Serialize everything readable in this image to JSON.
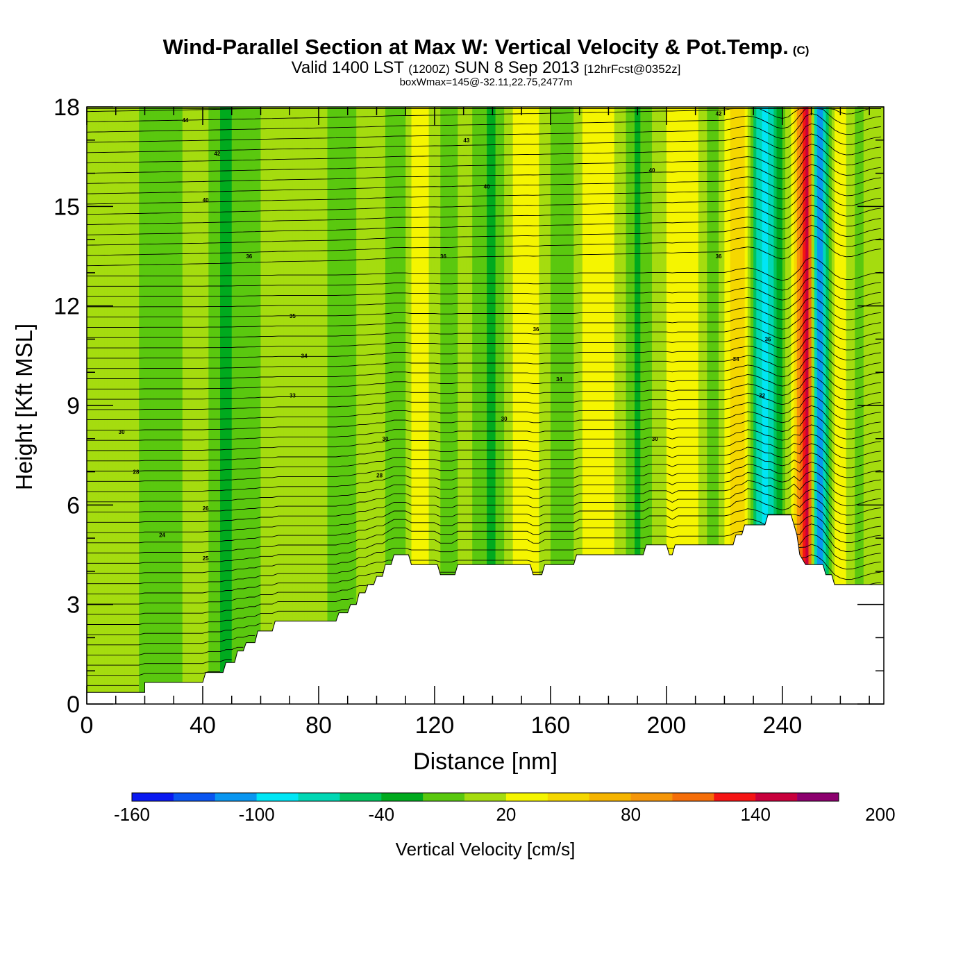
{
  "title": "Wind-Parallel Section at Max W: Vertical Velocity & Pot.Temp.",
  "title_mark": "(C)",
  "subtitle": {
    "valid": "Valid 1400 LST",
    "utc": "(1200Z)",
    "date": "SUN 8 Sep 2013",
    "forecast": "[12hrFcst@0352z]"
  },
  "info": "boxWmax=145@-32.11,22.75,2477m",
  "chart_data": {
    "type": "heatmap",
    "xlabel": "Distance [nm]",
    "ylabel": "Height [Kft MSL]",
    "xlim": [
      0,
      275
    ],
    "ylim": [
      0,
      18
    ],
    "x_ticks": [
      0,
      40,
      80,
      120,
      160,
      200,
      240
    ],
    "x_tick_labels": [
      "0",
      "40",
      "80",
      "120",
      "160",
      "200",
      "240"
    ],
    "y_ticks": [
      0,
      3,
      6,
      9,
      12,
      15,
      18
    ],
    "y_tick_labels": [
      "0",
      "3",
      "6",
      "9",
      "12",
      "15",
      "18"
    ],
    "colorbar": {
      "label": "Vertical Velocity [cm/s]",
      "levels": [
        -160,
        -140,
        -120,
        -100,
        -80,
        -60,
        -40,
        -20,
        0,
        20,
        40,
        60,
        80,
        100,
        120,
        140,
        160,
        180,
        200
      ],
      "tick_labels": [
        "-160",
        "-100",
        "-40",
        "20",
        "80",
        "140",
        "200"
      ],
      "colors": [
        "#0a19f0",
        "#0a55f0",
        "#0a96f0",
        "#00e6f5",
        "#00d7b4",
        "#00c35f",
        "#00aa1e",
        "#5ac80f",
        "#a5dc0f",
        "#f5f500",
        "#f5d700",
        "#f5b400",
        "#f5960a",
        "#f56e0a",
        "#f51414",
        "#c8003c",
        "#8c006e"
      ]
    },
    "terrain_kft": [
      [
        0,
        0.35
      ],
      [
        20,
        0.35
      ],
      [
        20,
        0.65
      ],
      [
        40,
        0.65
      ],
      [
        41,
        0.95
      ],
      [
        47,
        0.95
      ],
      [
        48,
        1.25
      ],
      [
        51,
        1.25
      ],
      [
        52,
        1.6
      ],
      [
        54,
        1.6
      ],
      [
        55,
        1.85
      ],
      [
        58,
        1.85
      ],
      [
        59,
        2.2
      ],
      [
        64,
        2.2
      ],
      [
        65,
        2.5
      ],
      [
        86,
        2.5
      ],
      [
        87,
        2.75
      ],
      [
        90,
        2.75
      ],
      [
        91,
        3.0
      ],
      [
        93,
        3.0
      ],
      [
        94,
        3.35
      ],
      [
        96,
        3.35
      ],
      [
        97,
        3.6
      ],
      [
        99,
        3.6
      ],
      [
        100,
        3.85
      ],
      [
        102,
        3.85
      ],
      [
        103,
        4.2
      ],
      [
        105,
        4.2
      ],
      [
        106,
        4.5
      ],
      [
        111,
        4.5
      ],
      [
        112,
        4.2
      ],
      [
        121,
        4.2
      ],
      [
        122,
        3.9
      ],
      [
        127,
        3.9
      ],
      [
        128,
        4.2
      ],
      [
        153,
        4.2
      ],
      [
        154,
        3.9
      ],
      [
        157,
        3.9
      ],
      [
        158,
        4.2
      ],
      [
        168,
        4.2
      ],
      [
        169,
        4.5
      ],
      [
        192,
        4.5
      ],
      [
        193,
        4.8
      ],
      [
        200,
        4.8
      ],
      [
        201,
        4.5
      ],
      [
        202,
        4.5
      ],
      [
        203,
        4.8
      ],
      [
        223,
        4.8
      ],
      [
        224,
        5.1
      ],
      [
        226,
        5.1
      ],
      [
        227,
        5.4
      ],
      [
        234,
        5.4
      ],
      [
        235,
        5.7
      ],
      [
        243,
        5.7
      ],
      [
        245,
        5.1
      ],
      [
        246,
        4.5
      ],
      [
        248,
        4.2
      ],
      [
        254,
        4.2
      ],
      [
        255,
        3.9
      ],
      [
        257,
        3.9
      ],
      [
        258,
        3.6
      ],
      [
        275,
        3.6
      ]
    ],
    "w_bands_cm_s": [
      [
        0,
        0
      ],
      [
        5,
        5
      ],
      [
        30,
        -5
      ],
      [
        40,
        10
      ],
      [
        47,
        -25
      ],
      [
        60,
        0
      ],
      [
        78,
        10
      ],
      [
        88,
        -10
      ],
      [
        100,
        15
      ],
      [
        108,
        -20
      ],
      [
        113,
        25
      ],
      [
        116,
        40
      ],
      [
        119,
        15
      ],
      [
        124,
        -15
      ],
      [
        130,
        10
      ],
      [
        140,
        -30
      ],
      [
        147,
        20
      ],
      [
        152,
        35
      ],
      [
        158,
        10
      ],
      [
        164,
        -20
      ],
      [
        172,
        25
      ],
      [
        178,
        40
      ],
      [
        184,
        10
      ],
      [
        190,
        -25
      ],
      [
        198,
        15
      ],
      [
        206,
        35
      ],
      [
        212,
        15
      ],
      [
        216,
        -20
      ],
      [
        219,
        10
      ],
      [
        222,
        40
      ],
      [
        225,
        60
      ],
      [
        228,
        20
      ],
      [
        231,
        -55
      ],
      [
        234,
        -100
      ],
      [
        237,
        -55
      ],
      [
        240,
        -20
      ],
      [
        244,
        40
      ],
      [
        247,
        120
      ],
      [
        249,
        150
      ],
      [
        251,
        -40
      ],
      [
        253,
        -130
      ],
      [
        255,
        -60
      ],
      [
        258,
        20
      ],
      [
        261,
        35
      ],
      [
        263,
        10
      ],
      [
        266,
        -10
      ],
      [
        270,
        15
      ],
      [
        275,
        0
      ]
    ],
    "theta_contour_labels": [
      {
        "text": "44",
        "x": 34,
        "y": 17.6
      },
      {
        "text": "42",
        "x": 45,
        "y": 16.6
      },
      {
        "text": "43",
        "x": 131,
        "y": 17.0
      },
      {
        "text": "40",
        "x": 41,
        "y": 15.2
      },
      {
        "text": "40",
        "x": 138,
        "y": 15.6
      },
      {
        "text": "40",
        "x": 195,
        "y": 16.1
      },
      {
        "text": "42",
        "x": 218,
        "y": 17.8
      },
      {
        "text": "36",
        "x": 56,
        "y": 13.5
      },
      {
        "text": "36",
        "x": 123,
        "y": 13.5
      },
      {
        "text": "36",
        "x": 218,
        "y": 13.5
      },
      {
        "text": "35",
        "x": 71,
        "y": 11.7
      },
      {
        "text": "36",
        "x": 155,
        "y": 11.3
      },
      {
        "text": "36",
        "x": 235,
        "y": 11.0
      },
      {
        "text": "34",
        "x": 75,
        "y": 10.5
      },
      {
        "text": "34",
        "x": 163,
        "y": 9.8
      },
      {
        "text": "34",
        "x": 224,
        "y": 10.4
      },
      {
        "text": "33",
        "x": 71,
        "y": 9.3
      },
      {
        "text": "32",
        "x": 233,
        "y": 9.3
      },
      {
        "text": "30",
        "x": 144,
        "y": 8.6
      },
      {
        "text": "30",
        "x": 12,
        "y": 8.2
      },
      {
        "text": "30",
        "x": 103,
        "y": 8.0
      },
      {
        "text": "30",
        "x": 196,
        "y": 8.0
      },
      {
        "text": "28",
        "x": 17,
        "y": 7.0
      },
      {
        "text": "28",
        "x": 101,
        "y": 6.9
      },
      {
        "text": "26",
        "x": 41,
        "y": 5.9
      },
      {
        "text": "24",
        "x": 26,
        "y": 5.1
      },
      {
        "text": "25",
        "x": 41,
        "y": 4.4
      }
    ]
  }
}
